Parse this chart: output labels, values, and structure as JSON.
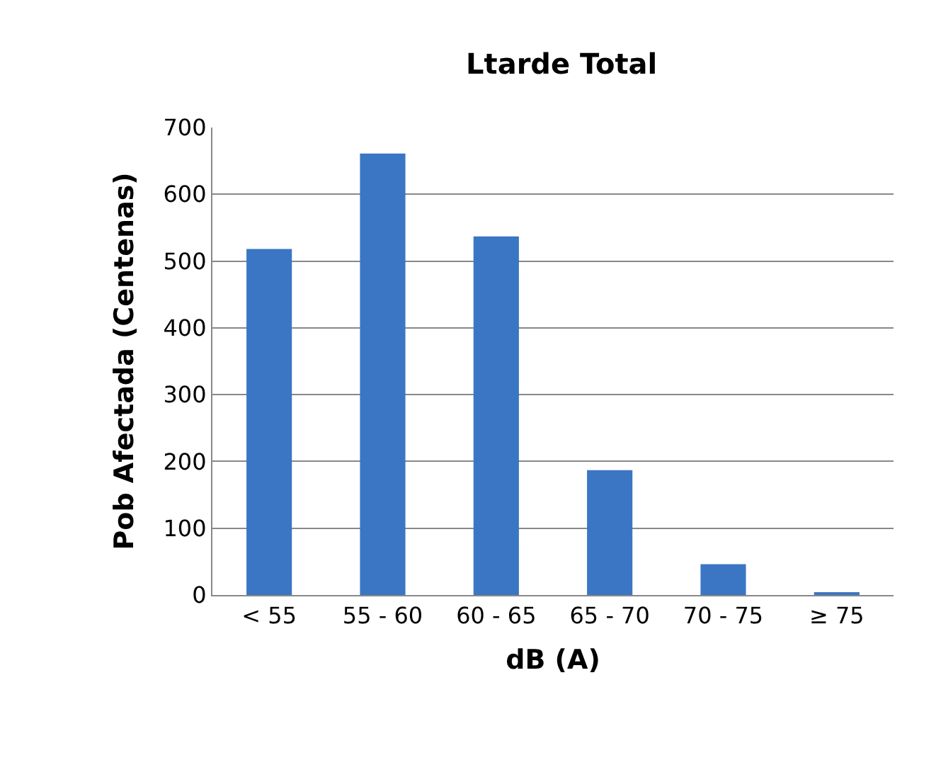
{
  "chart_data": {
    "type": "bar",
    "title": "Ltarde Total",
    "xlabel": "dB (A)",
    "ylabel": "Pob Afectada (Centenas)",
    "categories": [
      "< 55",
      "55 - 60",
      "60 - 65",
      "65 - 70",
      "70 - 75",
      "≥ 75"
    ],
    "values": [
      518,
      661,
      537,
      187,
      46,
      3
    ],
    "color": "#3a76c3",
    "ylim": [
      0,
      700
    ],
    "yticks": [
      0,
      100,
      200,
      300,
      400,
      500,
      600,
      700
    ],
    "grid": "y",
    "legend": false
  }
}
